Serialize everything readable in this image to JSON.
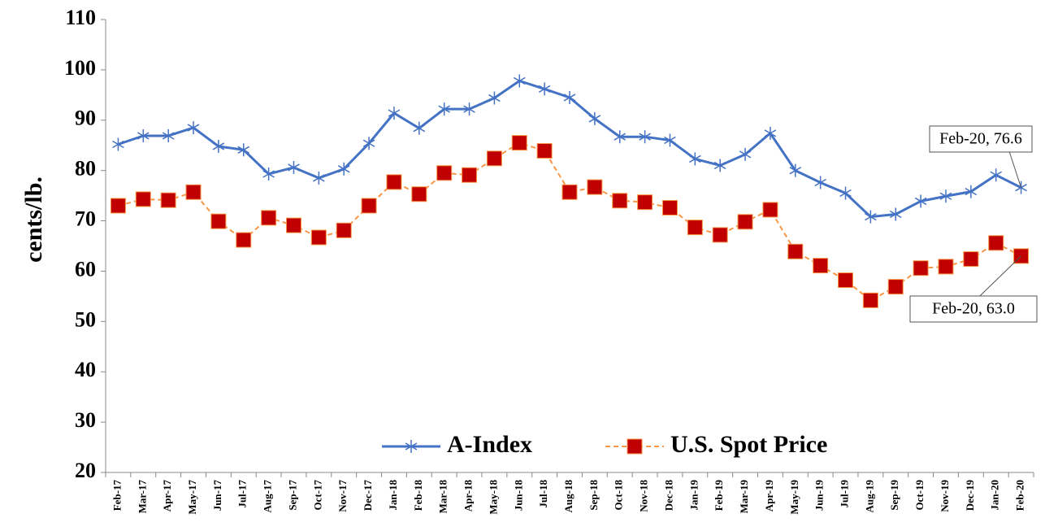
{
  "chart_data": {
    "type": "line",
    "y_label": "cents/lb.",
    "categories": [
      "Feb-17",
      "Mar-17",
      "Apr-17",
      "May-17",
      "Jun-17",
      "Jul-17",
      "Aug-17",
      "Sep-17",
      "Oct-17",
      "Nov-17",
      "Dec-17",
      "Jan-18",
      "Feb-18",
      "Mar-18",
      "Apr-18",
      "May-18",
      "Jun-18",
      "Jul-18",
      "Aug-18",
      "Sep-18",
      "Oct-18",
      "Nov-18",
      "Dec-18",
      "Jan-19",
      "Feb-19",
      "Mar-19",
      "Apr-19",
      "May-19",
      "Jun-19",
      "Jul-19",
      "Aug-19",
      "Sep-19",
      "Oct-19",
      "Nov-19",
      "Dec-19",
      "Jan-20",
      "Feb-20"
    ],
    "series": [
      {
        "name": "A-Index",
        "color": "#4472c4",
        "marker": "star",
        "values": [
          85.2,
          86.9,
          86.9,
          88.5,
          84.8,
          84.1,
          79.3,
          80.6,
          78.5,
          80.3,
          85.4,
          91.4,
          88.4,
          92.2,
          92.2,
          94.4,
          97.8,
          96.2,
          94.5,
          90.3,
          86.7,
          86.7,
          86.0,
          82.3,
          81.0,
          83.2,
          87.4,
          80.0,
          77.6,
          75.5,
          70.8,
          71.3,
          73.9,
          74.9,
          75.8,
          79.1,
          76.6
        ]
      },
      {
        "name": "U.S. Spot Price",
        "color": "#c00000",
        "line_color": "#f79646",
        "marker": "square",
        "values": [
          73.0,
          74.3,
          74.1,
          75.7,
          69.9,
          66.2,
          70.6,
          69.1,
          66.7,
          68.1,
          73.0,
          77.7,
          75.3,
          79.5,
          79.1,
          82.4,
          85.5,
          83.9,
          75.7,
          76.7,
          74.0,
          73.7,
          72.6,
          68.7,
          67.2,
          69.8,
          72.2,
          63.9,
          61.1,
          58.2,
          54.2,
          56.9,
          60.6,
          60.9,
          62.4,
          65.6,
          63.0
        ]
      }
    ],
    "annotations": [
      {
        "text": "Feb-20, 76.6"
      },
      {
        "text": "Feb-20, 63.0"
      }
    ],
    "ylim": [
      20,
      110
    ],
    "yticks": [
      20,
      30,
      40,
      50,
      60,
      70,
      80,
      90,
      100,
      110
    ],
    "grid": false,
    "legend": "lower-center"
  }
}
